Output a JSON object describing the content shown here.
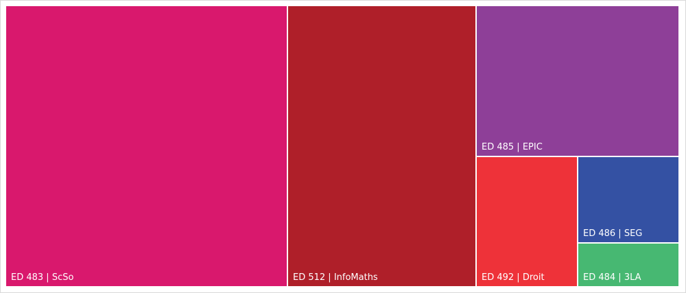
{
  "chart_data": {
    "type": "treemap",
    "title": "",
    "items": [
      {
        "label": "ED 483 | ScSo",
        "color": "#D9186D"
      },
      {
        "label": "ED 512 | InfoMaths",
        "color": "#AF1F29"
      },
      {
        "label": "ED 485 | EPIC",
        "color": "#8E3F98"
      },
      {
        "label": "ED 492 | Droit",
        "color": "#EE3239"
      },
      {
        "label": "ED 486 | SEG",
        "color": "#3451A3"
      },
      {
        "label": "ED 484 | 3LA",
        "color": "#47B872"
      }
    ]
  }
}
